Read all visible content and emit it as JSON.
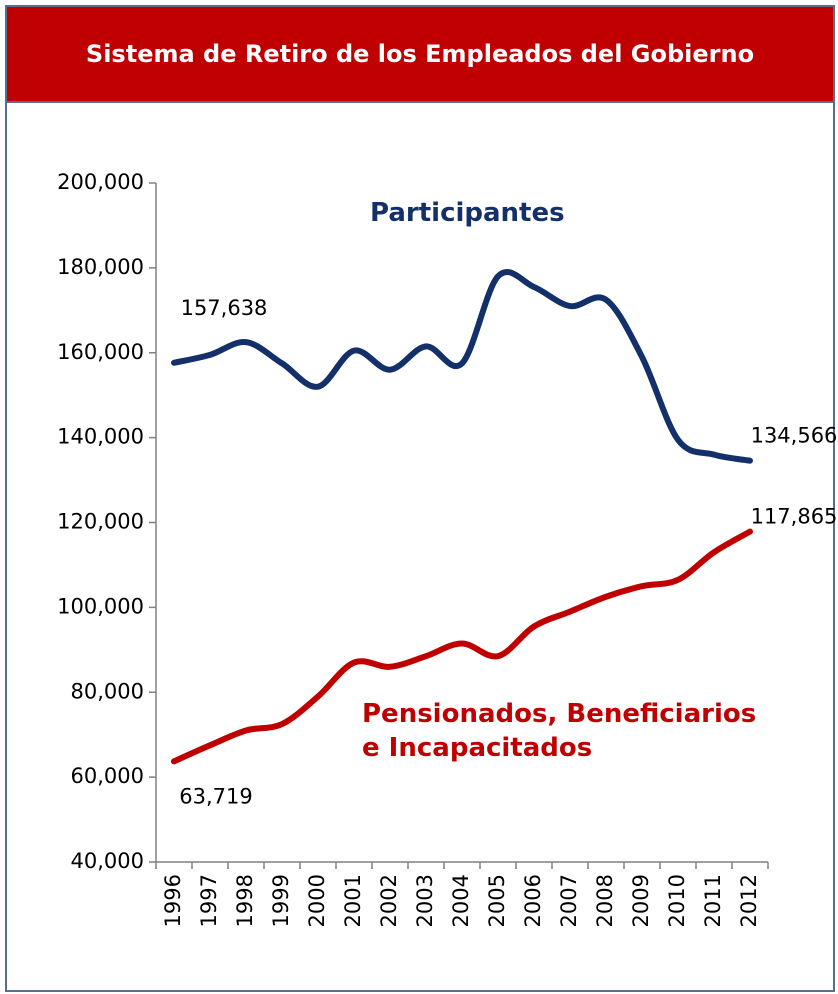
{
  "chart_data": {
    "type": "line",
    "title": "Sistema de Retiro de los Empleados del Gobierno",
    "categories": [
      "1996",
      "1997",
      "1998",
      "1999",
      "2000",
      "2001",
      "2002",
      "2003",
      "2004",
      "2005",
      "2006",
      "2007",
      "2008",
      "2009",
      "2010",
      "2011",
      "2012"
    ],
    "series": [
      {
        "name": "Participantes",
        "color": "#14306b",
        "values": [
          157638,
          159500,
          162500,
          157500,
          152000,
          160500,
          156000,
          161500,
          157500,
          178000,
          175500,
          171000,
          172500,
          159000,
          139500,
          136000,
          134566
        ],
        "value_labels": [
          "157,638",
          null,
          null,
          null,
          null,
          null,
          null,
          null,
          null,
          null,
          null,
          null,
          null,
          null,
          null,
          null,
          "134,566"
        ]
      },
      {
        "name": "Pensionados, Beneficiarios e Incapacitados",
        "color": "#c00000",
        "values": [
          63719,
          67500,
          71000,
          72500,
          79000,
          87000,
          86000,
          88500,
          91500,
          88500,
          95500,
          99000,
          102500,
          105000,
          106500,
          113000,
          117865
        ],
        "value_labels": [
          "63,719",
          null,
          null,
          null,
          null,
          null,
          null,
          null,
          null,
          null,
          null,
          null,
          null,
          null,
          null,
          null,
          "117,865"
        ]
      }
    ],
    "ylim": [
      40000,
      200000
    ],
    "yticks": [
      {
        "value": 40000,
        "label": "40,000"
      },
      {
        "value": 60000,
        "label": "60,000"
      },
      {
        "value": 80000,
        "label": "80,000"
      },
      {
        "value": 100000,
        "label": "100,000"
      },
      {
        "value": 120000,
        "label": "120,000"
      },
      {
        "value": 140000,
        "label": "140,000"
      },
      {
        "value": 160000,
        "label": "160,000"
      },
      {
        "value": 180000,
        "label": "180,000"
      },
      {
        "value": 200000,
        "label": "200,000"
      }
    ],
    "grid": false
  }
}
